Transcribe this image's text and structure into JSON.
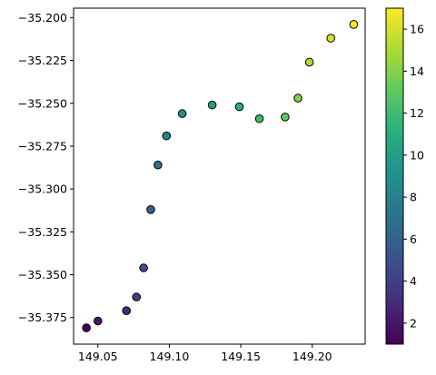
{
  "chart_data": {
    "type": "scatter",
    "title": "",
    "xlabel": "",
    "ylabel": "",
    "grid": false,
    "xlim": [
      149.033,
      149.237
    ],
    "ylim": [
      -35.3905,
      -35.1945
    ],
    "x_ticks": [
      149.05,
      149.1,
      149.15,
      149.2
    ],
    "x_tick_labels": [
      "149.05",
      "149.10",
      "149.15",
      "149.20"
    ],
    "y_ticks": [
      -35.375,
      -35.35,
      -35.325,
      -35.3,
      -35.275,
      -35.25,
      -35.225,
      -35.2
    ],
    "y_tick_labels": [
      "−35.375",
      "−35.350",
      "−35.325",
      "−35.300",
      "−35.275",
      "−35.250",
      "−35.225",
      "−35.200"
    ],
    "colorbar": {
      "colormap": "viridis",
      "range": [
        1,
        17
      ],
      "ticks": [
        2,
        4,
        6,
        8,
        10,
        12,
        14,
        16
      ],
      "tick_labels": [
        "2",
        "4",
        "6",
        "8",
        "10",
        "12",
        "14",
        "16"
      ]
    },
    "marker_edge_color": "#000000",
    "points": [
      {
        "x": 149.042,
        "y": -35.381,
        "c": 1
      },
      {
        "x": 149.05,
        "y": -35.377,
        "c": 2
      },
      {
        "x": 149.07,
        "y": -35.371,
        "c": 3
      },
      {
        "x": 149.077,
        "y": -35.363,
        "c": 4
      },
      {
        "x": 149.082,
        "y": -35.346,
        "c": 5
      },
      {
        "x": 149.087,
        "y": -35.312,
        "c": 6
      },
      {
        "x": 149.092,
        "y": -35.286,
        "c": 7
      },
      {
        "x": 149.098,
        "y": -35.269,
        "c": 8
      },
      {
        "x": 149.109,
        "y": -35.256,
        "c": 9
      },
      {
        "x": 149.13,
        "y": -35.251,
        "c": 10
      },
      {
        "x": 149.149,
        "y": -35.252,
        "c": 11
      },
      {
        "x": 149.163,
        "y": -35.259,
        "c": 12
      },
      {
        "x": 149.181,
        "y": -35.258,
        "c": 13
      },
      {
        "x": 149.19,
        "y": -35.247,
        "c": 14
      },
      {
        "x": 149.198,
        "y": -35.226,
        "c": 15
      },
      {
        "x": 149.213,
        "y": -35.212,
        "c": 16
      },
      {
        "x": 149.229,
        "y": -35.204,
        "c": 17
      }
    ]
  }
}
